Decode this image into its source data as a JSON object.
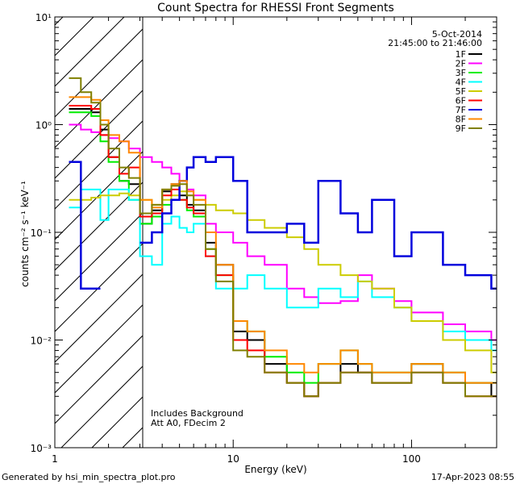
{
  "chart_data": {
    "type": "line",
    "title": "Count Spectra for RHESSI Front Segments",
    "xlabel": "Energy (keV)",
    "ylabel": "counts cm⁻² s⁻¹ keV⁻¹",
    "xscale": "log",
    "yscale": "log",
    "xlim": [
      1,
      300
    ],
    "ylim": [
      0.001,
      10
    ],
    "x_ticks": [
      {
        "value": 1,
        "label": "1"
      },
      {
        "value": 10,
        "label": "10"
      },
      {
        "value": 100,
        "label": "100"
      }
    ],
    "y_ticks": [
      {
        "value": 10,
        "label": "10¹"
      },
      {
        "value": 1,
        "label": "10⁰"
      },
      {
        "value": 0.1,
        "label": "10⁻¹"
      },
      {
        "value": 0.01,
        "label": "10⁻²"
      },
      {
        "value": 0.001,
        "label": "10⁻³"
      }
    ],
    "shaded_region": {
      "x_from": 1,
      "x_to": 3,
      "pattern": "diagonal hatch"
    },
    "date": "5-Oct-2014",
    "time_range": "21:45:00 to 21:46:00",
    "annotations": [
      "Includes Background",
      "Att A0, FDecim 2"
    ],
    "footer_left": "Generated by hsi_min_spectra_plot.pro",
    "footer_right": "17-Apr-2023 08:55",
    "series": [
      {
        "name": "1F",
        "color": "#000000",
        "x": [
          1.2,
          1.4,
          1.6,
          1.8,
          2.0,
          2.3,
          2.6,
          3.0,
          3.5,
          4.0,
          4.5,
          5.0,
          5.5,
          6.0,
          7.0,
          8.0,
          10,
          12,
          15,
          20,
          25,
          30,
          40,
          50,
          60,
          80,
          100,
          150,
          200,
          280
        ],
        "y": [
          1.4,
          1.4,
          1.3,
          0.9,
          0.5,
          0.3,
          0.28,
          0.12,
          0.16,
          0.24,
          0.28,
          0.22,
          0.18,
          0.16,
          0.08,
          0.05,
          0.012,
          0.01,
          0.006,
          0.004,
          0.003,
          0.004,
          0.006,
          0.005,
          0.004,
          0.004,
          0.006,
          0.004,
          0.004,
          0.003
        ]
      },
      {
        "name": "2F",
        "color": "#ff00ff",
        "x": [
          1.2,
          1.4,
          1.6,
          1.8,
          2.0,
          2.3,
          2.6,
          3.0,
          3.5,
          4.0,
          4.5,
          5.0,
          5.5,
          6.0,
          7.0,
          8.0,
          10,
          12,
          15,
          20,
          25,
          30,
          40,
          50,
          60,
          80,
          100,
          150,
          200,
          280
        ],
        "y": [
          1.0,
          0.9,
          0.85,
          0.8,
          0.75,
          0.7,
          0.6,
          0.5,
          0.45,
          0.4,
          0.35,
          0.3,
          0.25,
          0.22,
          0.12,
          0.1,
          0.08,
          0.06,
          0.05,
          0.03,
          0.025,
          0.022,
          0.023,
          0.04,
          0.03,
          0.023,
          0.018,
          0.014,
          0.012,
          0.01
        ]
      },
      {
        "name": "3F",
        "color": "#00ee00",
        "x": [
          1.2,
          1.4,
          1.6,
          1.8,
          2.0,
          2.3,
          2.6,
          3.0,
          3.5,
          4.0,
          4.5,
          5.0,
          5.5,
          6.0,
          7.0,
          8.0,
          10,
          12,
          15,
          20,
          25,
          30,
          40,
          50,
          60,
          80,
          100,
          150,
          200,
          280
        ],
        "y": [
          1.3,
          1.3,
          1.2,
          0.7,
          0.45,
          0.3,
          0.2,
          0.12,
          0.14,
          0.18,
          0.2,
          0.2,
          0.16,
          0.14,
          0.07,
          0.04,
          0.015,
          0.012,
          0.007,
          0.005,
          0.004,
          0.006,
          0.008,
          0.006,
          0.005,
          0.005,
          0.006,
          0.005,
          0.004,
          0.004
        ]
      },
      {
        "name": "4F",
        "color": "#00ffff",
        "x": [
          1.2,
          1.4,
          1.6,
          1.8,
          2.0,
          2.3,
          2.6,
          3.0,
          3.5,
          4.0,
          4.5,
          5.0,
          5.5,
          6.0,
          7.0,
          8.0,
          10,
          12,
          15,
          20,
          25,
          30,
          40,
          50,
          60,
          80,
          100,
          150,
          200,
          280
        ],
        "y": [
          0.17,
          0.25,
          0.25,
          0.13,
          0.25,
          0.25,
          0.2,
          0.06,
          0.05,
          0.12,
          0.14,
          0.11,
          0.1,
          0.12,
          0.06,
          0.03,
          0.03,
          0.04,
          0.03,
          0.02,
          0.02,
          0.03,
          0.025,
          0.035,
          0.025,
          0.02,
          0.015,
          0.012,
          0.01,
          0.008
        ]
      },
      {
        "name": "5F",
        "color": "#cccc00",
        "x": [
          1.2,
          1.4,
          1.6,
          1.8,
          2.0,
          2.3,
          2.6,
          3.0,
          3.5,
          4.0,
          4.5,
          5.0,
          5.5,
          6.0,
          7.0,
          8.0,
          10,
          12,
          15,
          20,
          25,
          30,
          40,
          50,
          60,
          80,
          100,
          150,
          200,
          280
        ],
        "y": [
          0.2,
          0.2,
          0.21,
          0.22,
          0.22,
          0.23,
          0.22,
          0.2,
          0.18,
          0.2,
          0.22,
          0.24,
          0.22,
          0.2,
          0.18,
          0.16,
          0.15,
          0.13,
          0.11,
          0.09,
          0.07,
          0.05,
          0.04,
          0.035,
          0.03,
          0.02,
          0.015,
          0.01,
          0.008,
          0.005
        ]
      },
      {
        "name": "6F",
        "color": "#ff0000",
        "x": [
          1.2,
          1.4,
          1.6,
          1.8,
          2.0,
          2.3,
          2.6,
          3.0,
          3.5,
          4.0,
          4.5,
          5.0,
          5.5,
          6.0,
          7.0,
          8.0,
          10,
          12,
          15,
          20,
          25,
          30,
          40,
          50,
          60,
          80,
          100,
          150,
          200,
          280
        ],
        "y": [
          1.5,
          1.5,
          1.4,
          0.8,
          0.5,
          0.35,
          0.4,
          0.14,
          0.15,
          0.22,
          0.25,
          0.2,
          0.17,
          0.15,
          0.06,
          0.04,
          0.01,
          0.008,
          0.005,
          0.004,
          0.003,
          0.004,
          0.005,
          0.005,
          0.004,
          0.004,
          0.005,
          0.004,
          0.003,
          0.003
        ]
      },
      {
        "name": "7F",
        "color": "#0000dd",
        "x": [
          1.2,
          1.4,
          1.6,
          1.8,
          2.0,
          2.3,
          2.6,
          3.0,
          3.5,
          4.0,
          4.5,
          5.0,
          5.5,
          6.0,
          7.0,
          8.0,
          10,
          12,
          15,
          20,
          25,
          30,
          40,
          50,
          60,
          80,
          100,
          150,
          200,
          280
        ],
        "y": [
          0.45,
          0.03,
          0.03,
          null,
          null,
          null,
          null,
          0.08,
          0.1,
          0.15,
          0.2,
          0.3,
          0.4,
          0.5,
          0.45,
          0.5,
          0.3,
          0.1,
          0.1,
          0.12,
          0.08,
          0.3,
          0.15,
          0.1,
          0.2,
          0.06,
          0.1,
          0.05,
          0.04,
          0.03
        ]
      },
      {
        "name": "8F",
        "color": "#ff8800",
        "x": [
          1.2,
          1.4,
          1.6,
          1.8,
          2.0,
          2.3,
          2.6,
          3.0,
          3.5,
          4.0,
          4.5,
          5.0,
          5.5,
          6.0,
          7.0,
          8.0,
          10,
          12,
          15,
          20,
          25,
          30,
          40,
          50,
          60,
          80,
          100,
          150,
          200,
          280
        ],
        "y": [
          1.8,
          1.8,
          1.7,
          1.1,
          0.8,
          0.7,
          0.55,
          0.2,
          0.17,
          0.25,
          0.28,
          0.3,
          0.24,
          0.2,
          0.1,
          0.05,
          0.015,
          0.012,
          0.008,
          0.006,
          0.005,
          0.006,
          0.008,
          0.006,
          0.005,
          0.005,
          0.006,
          0.005,
          0.004,
          0.004
        ]
      },
      {
        "name": "9F",
        "color": "#808000",
        "x": [
          1.2,
          1.4,
          1.6,
          1.8,
          2.0,
          2.3,
          2.6,
          3.0,
          3.5,
          4.0,
          4.5,
          5.0,
          5.5,
          6.0,
          7.0,
          8.0,
          10,
          12,
          15,
          20,
          25,
          30,
          40,
          50,
          60,
          80,
          100,
          150,
          200,
          280
        ],
        "y": [
          2.7,
          2.0,
          1.6,
          1.0,
          0.6,
          0.4,
          0.32,
          0.15,
          0.18,
          0.25,
          0.27,
          0.28,
          0.22,
          0.18,
          0.07,
          0.035,
          0.008,
          0.007,
          0.005,
          0.004,
          0.003,
          0.004,
          0.005,
          0.005,
          0.004,
          0.004,
          0.005,
          0.004,
          0.003,
          0.003
        ]
      }
    ]
  }
}
